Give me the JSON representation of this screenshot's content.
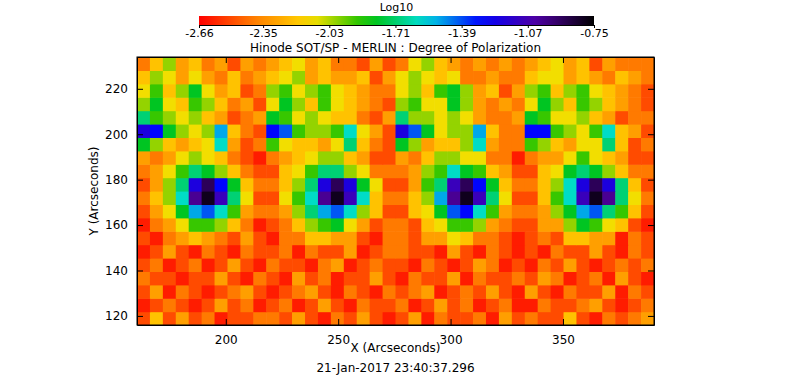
{
  "chart_data": {
    "type": "heatmap",
    "title": "Hinode SOT/SP - MERLIN : Degree of Polarization",
    "x_label": "X (Arcseconds)",
    "y_label": "Y (Arcseconds)",
    "date": "21-Jan-2017 23:40:37.296",
    "xlim": [
      160.5,
      390.5
    ],
    "ylim": [
      116,
      234
    ],
    "xticks": [
      200,
      250,
      300,
      350
    ],
    "yticks": [
      120,
      140,
      160,
      180,
      200,
      220
    ],
    "x_bins": [
      160.5,
      166.25,
      172,
      177.75,
      183.5,
      189.25,
      195,
      200.75,
      206.5,
      212.25,
      218,
      223.75,
      229.5,
      235.25,
      241,
      246.75,
      252.5,
      258.25,
      264,
      269.75,
      275.5,
      281.25,
      287,
      292.75,
      298.5,
      304.25,
      310,
      315.75,
      321.5,
      327.25,
      333,
      338.75,
      344.5,
      350.25,
      356,
      361.75,
      367.5,
      373.25,
      379,
      384.75,
      390.5
    ],
    "y_bins": [
      116,
      121.9,
      127.8,
      133.7,
      139.6,
      145.5,
      151.4,
      157.3,
      163.2,
      169.1,
      175,
      180.9,
      186.8,
      192.7,
      198.6,
      204.5,
      210.4,
      216.3,
      222.2,
      228.1,
      234
    ],
    "cells": [
      [
        -2.5,
        -2.2,
        -2.5,
        -2.3,
        -2.5,
        -2.4,
        -2.6,
        -2.5,
        -2.5,
        -2.4,
        -2.4,
        -2.5,
        -2.3,
        -2.5,
        -2.6,
        -2.4,
        -2.5,
        -2.3,
        -2.5,
        -2.6,
        -2.5,
        -2.3,
        -2.6,
        -2.4,
        -2.5,
        -2.5,
        -2.4,
        -2.6,
        -2.3,
        -2.5,
        -2.4,
        -2.5,
        -2.5,
        -2.2,
        -2.5,
        -2.6,
        -2.4,
        -2.5,
        -2.4,
        -2.3
      ],
      [
        -2.6,
        -2.5,
        -2.4,
        -2.5,
        -2.6,
        -2.5,
        -2.3,
        -2.5,
        -2.4,
        -2.6,
        -2.5,
        -2.4,
        -2.6,
        -2.5,
        -2.3,
        -2.5,
        -2.6,
        -2.4,
        -2.5,
        -2.5,
        -2.4,
        -2.6,
        -2.5,
        -2.3,
        -2.5,
        -2.4,
        -2.6,
        -2.5,
        -2.4,
        -2.6,
        -2.6,
        -2.4,
        -2.5,
        -2.5,
        -2.4,
        -2.3,
        -2.5,
        -2.6,
        -2.5,
        -2.4
      ],
      [
        -2.5,
        -2.3,
        -2.6,
        -2.4,
        -2.5,
        -2.6,
        -2.5,
        -2.4,
        -2.3,
        -2.5,
        -2.6,
        -2.5,
        -2.4,
        -2.3,
        -2.5,
        -2.6,
        -2.4,
        -2.5,
        -2.6,
        -2.4,
        -2.5,
        -2.4,
        -2.3,
        -2.6,
        -2.5,
        -2.4,
        -2.5,
        -2.3,
        -2.5,
        -2.6,
        -2.3,
        -2.5,
        -2.6,
        -2.4,
        -2.5,
        -2.5,
        -2.3,
        -2.6,
        -2.4,
        -2.5
      ],
      [
        -2.4,
        -2.5,
        -2.5,
        -2.6,
        -2.5,
        -2.5,
        -2.3,
        -2.5,
        -2.6,
        -2.4,
        -2.5,
        -2.6,
        -2.3,
        -2.5,
        -2.4,
        -2.6,
        -2.5,
        -2.5,
        -2.3,
        -2.5,
        -2.6,
        -2.4,
        -2.5,
        -2.5,
        -2.3,
        -2.6,
        -2.4,
        -2.5,
        -2.5,
        -2.4,
        -2.5,
        -2.3,
        -2.4,
        -2.6,
        -2.5,
        -2.4,
        -2.6,
        -2.3,
        -2.5,
        -2.6
      ],
      [
        -2.5,
        -2.4,
        -2.6,
        -2.5,
        -2.4,
        -2.6,
        -2.5,
        -2.3,
        -2.5,
        -2.6,
        -2.4,
        -2.5,
        -2.5,
        -2.6,
        -2.4,
        -2.3,
        -2.6,
        -2.5,
        -2.4,
        -2.5,
        -2.5,
        -2.6,
        -2.4,
        -2.5,
        -2.6,
        -2.5,
        -2.3,
        -2.4,
        -2.6,
        -2.5,
        -2.6,
        -2.4,
        -2.5,
        -2.3,
        -2.5,
        -2.6,
        -2.5,
        -2.4,
        -2.5,
        -2.4
      ],
      [
        -2.6,
        -2.5,
        -2.3,
        -2.5,
        -2.6,
        -2.4,
        -2.5,
        -2.6,
        -2.4,
        -2.5,
        -2.5,
        -2.4,
        -2.6,
        -2.4,
        -2.5,
        -2.5,
        -2.3,
        -2.6,
        -2.5,
        -2.4,
        -2.4,
        -2.5,
        -2.5,
        -2.6,
        -2.3,
        -2.5,
        -2.6,
        -2.4,
        -2.5,
        -2.6,
        -2.5,
        -2.6,
        -2.4,
        -2.5,
        -2.5,
        -2.3,
        -2.5,
        -2.6,
        -2.4,
        -2.5
      ],
      [
        -2.5,
        -2.6,
        -2.4,
        -2.3,
        -2.2,
        -2.3,
        -2.4,
        -2.5,
        -2.3,
        -2.5,
        -2.6,
        -2.4,
        -2.4,
        -2.2,
        -2.2,
        -2.3,
        -2.3,
        -2.5,
        -2.6,
        -2.4,
        -2.4,
        -2.5,
        -2.3,
        -2.3,
        -2.1,
        -2.2,
        -2.4,
        -2.4,
        -2.5,
        -2.6,
        -2.5,
        -2.4,
        -2.5,
        -2.2,
        -2.2,
        -2.3,
        -2.3,
        -2.6,
        -2.4,
        -2.5
      ],
      [
        -2.6,
        -2.4,
        -2.3,
        -2.1,
        -1.9,
        -1.9,
        -2.0,
        -2.2,
        -2.4,
        -2.6,
        -2.5,
        -2.4,
        -2.2,
        -2.0,
        -1.9,
        -1.8,
        -2.1,
        -2.3,
        -2.5,
        -2.4,
        -2.4,
        -2.5,
        -2.2,
        -2.1,
        -1.9,
        -1.9,
        -2.0,
        -2.3,
        -2.4,
        -2.5,
        -2.5,
        -2.3,
        -2.3,
        -2.0,
        -1.8,
        -1.9,
        -2.1,
        -2.2,
        -2.5,
        -2.6
      ],
      [
        -2.5,
        -2.3,
        -2.1,
        -1.8,
        -1.5,
        -1.4,
        -1.6,
        -1.9,
        -2.3,
        -2.4,
        -2.4,
        -2.3,
        -2.0,
        -1.7,
        -1.5,
        -1.4,
        -1.6,
        -2.0,
        -2.2,
        -2.5,
        -2.5,
        -2.2,
        -2.1,
        -1.8,
        -1.4,
        -1.3,
        -1.6,
        -1.9,
        -2.3,
        -2.4,
        -2.4,
        -2.3,
        -2.0,
        -1.8,
        -1.5,
        -1.4,
        -1.7,
        -1.9,
        -2.2,
        -2.5
      ],
      [
        -2.4,
        -2.2,
        -2.0,
        -1.6,
        -1.0,
        -0.8,
        -1.1,
        -1.7,
        -2.1,
        -2.5,
        -2.5,
        -2.1,
        -1.9,
        -1.6,
        -1.0,
        -0.8,
        -1.1,
        -1.6,
        -2.2,
        -2.4,
        -2.4,
        -2.2,
        -2.0,
        -1.5,
        -1.0,
        -0.8,
        -1.1,
        -1.7,
        -2.1,
        -2.5,
        -2.5,
        -2.2,
        -1.9,
        -1.6,
        -1.1,
        -0.8,
        -1.0,
        -1.7,
        -2.1,
        -2.4
      ],
      [
        -2.5,
        -2.3,
        -2.0,
        -1.7,
        -1.2,
        -0.9,
        -1.3,
        -1.8,
        -2.2,
        -2.4,
        -2.4,
        -2.2,
        -2.0,
        -1.7,
        -1.2,
        -0.9,
        -1.2,
        -1.8,
        -2.1,
        -2.5,
        -2.5,
        -2.3,
        -1.9,
        -1.7,
        -1.1,
        -0.9,
        -1.3,
        -1.8,
        -2.2,
        -2.4,
        -2.4,
        -2.2,
        -2.0,
        -1.6,
        -1.2,
        -0.9,
        -1.2,
        -1.7,
        -2.2,
        -2.5
      ],
      [
        -2.4,
        -2.3,
        -2.1,
        -1.9,
        -1.7,
        -1.8,
        -2.0,
        -2.2,
        -2.4,
        -2.5,
        -2.5,
        -2.2,
        -2.1,
        -1.9,
        -1.7,
        -1.7,
        -2.0,
        -2.1,
        -2.4,
        -2.4,
        -2.4,
        -2.3,
        -2.0,
        -1.9,
        -1.6,
        -1.8,
        -1.9,
        -2.2,
        -2.3,
        -2.5,
        -2.5,
        -2.2,
        -2.1,
        -1.8,
        -1.7,
        -1.8,
        -2.0,
        -2.2,
        -2.4,
        -2.4
      ],
      [
        -2.3,
        -2.4,
        -2.3,
        -2.1,
        -2.0,
        -2.1,
        -2.2,
        -2.4,
        -2.5,
        -2.6,
        -2.4,
        -2.3,
        -2.2,
        -2.1,
        -2.0,
        -2.0,
        -2.2,
        -2.3,
        -2.5,
        -2.5,
        -2.3,
        -2.4,
        -2.2,
        -2.0,
        -2.0,
        -2.1,
        -2.1,
        -2.4,
        -2.4,
        -2.6,
        -2.4,
        -2.3,
        -2.3,
        -2.1,
        -1.9,
        -2.1,
        -2.2,
        -2.3,
        -2.5,
        -2.5
      ],
      [
        -1.8,
        -2.0,
        -2.2,
        -2.3,
        -2.2,
        -2.1,
        -1.6,
        -2.3,
        -2.5,
        -2.4,
        -1.9,
        -2.1,
        -2.2,
        -2.2,
        -2.3,
        -2.1,
        -1.7,
        -2.2,
        -2.4,
        -2.5,
        -1.8,
        -2.0,
        -2.3,
        -2.2,
        -2.2,
        -2.0,
        -1.6,
        -2.3,
        -2.4,
        -2.4,
        -1.9,
        -2.0,
        -2.2,
        -2.3,
        -2.1,
        -2.1,
        -1.7,
        -2.2,
        -2.5,
        -2.4
      ],
      [
        -1.2,
        -1.3,
        -1.8,
        -2.0,
        -2.1,
        -2.0,
        -1.5,
        -2.2,
        -2.4,
        -2.5,
        -1.3,
        -1.4,
        -1.9,
        -2.0,
        -2.0,
        -1.9,
        -1.6,
        -2.1,
        -2.3,
        -2.5,
        -1.2,
        -1.4,
        -1.8,
        -2.1,
        -2.0,
        -2.0,
        -1.5,
        -2.2,
        -2.4,
        -2.4,
        -1.3,
        -1.3,
        -1.9,
        -2.0,
        -2.1,
        -1.9,
        -1.6,
        -2.2,
        -2.3,
        -2.5
      ],
      [
        -1.7,
        -1.9,
        -2.0,
        -2.1,
        -2.0,
        -2.2,
        -2.3,
        -2.5,
        -2.4,
        -2.3,
        -1.8,
        -1.9,
        -2.1,
        -2.0,
        -2.1,
        -2.2,
        -2.2,
        -2.4,
        -2.5,
        -2.3,
        -1.7,
        -2.0,
        -2.0,
        -2.1,
        -2.0,
        -2.1,
        -2.3,
        -2.4,
        -2.4,
        -2.3,
        -1.8,
        -1.9,
        -2.1,
        -2.1,
        -2.0,
        -2.2,
        -2.3,
        -2.5,
        -2.4,
        -2.4
      ],
      [
        -2.0,
        -1.8,
        -2.1,
        -2.2,
        -1.9,
        -2.0,
        -2.2,
        -2.4,
        -2.3,
        -2.5,
        -2.1,
        -1.8,
        -2.0,
        -2.2,
        -1.9,
        -2.1,
        -2.2,
        -2.3,
        -2.4,
        -2.5,
        -2.0,
        -1.9,
        -2.1,
        -2.1,
        -1.8,
        -2.0,
        -2.3,
        -2.4,
        -2.3,
        -2.4,
        -2.1,
        -1.8,
        -2.0,
        -2.2,
        -1.9,
        -2.0,
        -2.2,
        -2.3,
        -2.4,
        -2.5
      ],
      [
        -2.1,
        -1.9,
        -2.2,
        -2.0,
        -1.8,
        -2.1,
        -2.3,
        -2.2,
        -2.5,
        -2.4,
        -2.0,
        -1.9,
        -2.1,
        -2.0,
        -1.9,
        -2.1,
        -2.2,
        -2.3,
        -2.4,
        -2.4,
        -2.1,
        -2.0,
        -2.2,
        -1.9,
        -1.8,
        -2.0,
        -2.3,
        -2.2,
        -2.5,
        -2.3,
        -2.0,
        -1.9,
        -2.2,
        -2.0,
        -1.9,
        -2.1,
        -2.2,
        -2.3,
        -2.4,
        -2.5
      ],
      [
        -2.2,
        -2.0,
        -2.1,
        -2.3,
        -2.1,
        -2.3,
        -2.4,
        -2.2,
        -2.4,
        -2.3,
        -2.2,
        -2.1,
        -2.0,
        -2.3,
        -2.2,
        -2.3,
        -2.3,
        -2.2,
        -2.5,
        -2.3,
        -2.1,
        -2.0,
        -2.1,
        -2.2,
        -2.1,
        -2.4,
        -2.4,
        -2.3,
        -2.4,
        -2.4,
        -2.2,
        -2.1,
        -2.1,
        -2.3,
        -2.2,
        -2.3,
        -2.4,
        -2.2,
        -2.3,
        -2.4
      ],
      [
        -2.4,
        -2.2,
        -2.0,
        -2.3,
        -2.2,
        -2.4,
        -2.3,
        -2.5,
        -2.3,
        -2.4,
        -2.3,
        -2.2,
        -2.1,
        -2.3,
        -2.2,
        -2.4,
        -2.4,
        -2.5,
        -2.3,
        -2.5,
        -2.4,
        -2.1,
        -2.0,
        -2.2,
        -2.3,
        -2.4,
        -2.3,
        -2.4,
        -2.3,
        -2.4,
        -2.3,
        -2.2,
        -2.1,
        -2.3,
        -2.2,
        -2.5,
        -2.3,
        -2.4,
        -2.4,
        -2.4
      ]
    ],
    "colorbar": {
      "label": "Log10",
      "range": [
        -2.66,
        -0.75
      ],
      "ticks": [
        -2.66,
        -2.35,
        -2.03,
        -1.71,
        -1.39,
        -1.07,
        -0.75
      ]
    }
  }
}
